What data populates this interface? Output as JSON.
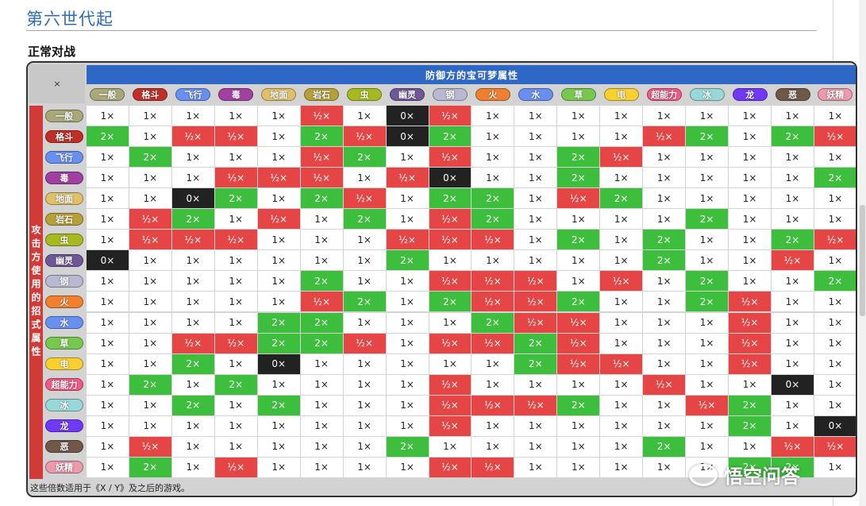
{
  "section_title": "第六世代起",
  "sub_title": "正常对战",
  "table": {
    "corner": "×",
    "defender_header": "防御方的宝可梦属性",
    "attacker_header": "攻击方使用的招式属性",
    "footer_note": "这些倍数适用于《X / Y》及之后的游戏。",
    "types": [
      {
        "name": "一般",
        "color": "#a8a878"
      },
      {
        "name": "格斗",
        "color": "#c03028"
      },
      {
        "name": "飞行",
        "color": "#6890f0"
      },
      {
        "name": "毒",
        "color": "#a040a0"
      },
      {
        "name": "地面",
        "color": "#e0c068"
      },
      {
        "name": "岩石",
        "color": "#b8a038"
      },
      {
        "name": "虫",
        "color": "#a8b820"
      },
      {
        "name": "幽灵",
        "color": "#705898"
      },
      {
        "name": "钢",
        "color": "#b8b8d0"
      },
      {
        "name": "火",
        "color": "#f08030"
      },
      {
        "name": "水",
        "color": "#6890f0"
      },
      {
        "name": "草",
        "color": "#78c850"
      },
      {
        "name": "电",
        "color": "#f8d030"
      },
      {
        "name": "超能力",
        "color": "#f85888"
      },
      {
        "name": "冰",
        "color": "#98d8d8"
      },
      {
        "name": "龙",
        "color": "#7038f8"
      },
      {
        "name": "恶",
        "color": "#705848"
      },
      {
        "name": "妖精",
        "color": "#ee99ac"
      }
    ],
    "multiplier_labels": {
      "1": "1×",
      "2": "2×",
      "h": "½×",
      "0": "0×"
    },
    "matrix": [
      [
        "1",
        "1",
        "1",
        "1",
        "1",
        "h",
        "1",
        "0",
        "h",
        "1",
        "1",
        "1",
        "1",
        "1",
        "1",
        "1",
        "1",
        "1"
      ],
      [
        "2",
        "1",
        "h",
        "h",
        "1",
        "2",
        "h",
        "0",
        "2",
        "1",
        "1",
        "1",
        "1",
        "h",
        "2",
        "1",
        "2",
        "h"
      ],
      [
        "1",
        "2",
        "1",
        "1",
        "1",
        "h",
        "2",
        "1",
        "h",
        "1",
        "1",
        "2",
        "h",
        "1",
        "1",
        "1",
        "1",
        "1"
      ],
      [
        "1",
        "1",
        "1",
        "h",
        "h",
        "h",
        "1",
        "h",
        "0",
        "1",
        "1",
        "2",
        "1",
        "1",
        "1",
        "1",
        "1",
        "2"
      ],
      [
        "1",
        "1",
        "0",
        "2",
        "1",
        "2",
        "h",
        "1",
        "2",
        "2",
        "1",
        "h",
        "2",
        "1",
        "1",
        "1",
        "1",
        "1"
      ],
      [
        "1",
        "h",
        "2",
        "1",
        "h",
        "1",
        "2",
        "1",
        "h",
        "2",
        "1",
        "1",
        "1",
        "1",
        "2",
        "1",
        "1",
        "1"
      ],
      [
        "1",
        "h",
        "h",
        "h",
        "1",
        "1",
        "1",
        "h",
        "h",
        "h",
        "1",
        "2",
        "1",
        "2",
        "1",
        "1",
        "2",
        "h"
      ],
      [
        "0",
        "1",
        "1",
        "1",
        "1",
        "1",
        "1",
        "2",
        "1",
        "1",
        "1",
        "1",
        "1",
        "2",
        "1",
        "1",
        "h",
        "1"
      ],
      [
        "1",
        "1",
        "1",
        "1",
        "1",
        "2",
        "1",
        "1",
        "h",
        "h",
        "h",
        "1",
        "h",
        "1",
        "2",
        "1",
        "1",
        "2"
      ],
      [
        "1",
        "1",
        "1",
        "1",
        "1",
        "h",
        "2",
        "1",
        "2",
        "h",
        "h",
        "2",
        "1",
        "1",
        "2",
        "h",
        "1",
        "1"
      ],
      [
        "1",
        "1",
        "1",
        "1",
        "2",
        "2",
        "1",
        "1",
        "1",
        "2",
        "h",
        "h",
        "1",
        "1",
        "1",
        "h",
        "1",
        "1"
      ],
      [
        "1",
        "1",
        "h",
        "h",
        "2",
        "2",
        "h",
        "1",
        "h",
        "h",
        "2",
        "h",
        "1",
        "1",
        "1",
        "h",
        "1",
        "1"
      ],
      [
        "1",
        "1",
        "2",
        "1",
        "0",
        "1",
        "1",
        "1",
        "1",
        "1",
        "2",
        "h",
        "h",
        "1",
        "1",
        "h",
        "1",
        "1"
      ],
      [
        "1",
        "2",
        "1",
        "2",
        "1",
        "1",
        "1",
        "1",
        "h",
        "1",
        "1",
        "1",
        "1",
        "h",
        "1",
        "1",
        "0",
        "1"
      ],
      [
        "1",
        "1",
        "2",
        "1",
        "2",
        "1",
        "1",
        "1",
        "h",
        "h",
        "h",
        "2",
        "1",
        "1",
        "h",
        "2",
        "1",
        "1"
      ],
      [
        "1",
        "1",
        "1",
        "1",
        "1",
        "1",
        "1",
        "1",
        "h",
        "1",
        "1",
        "1",
        "1",
        "1",
        "1",
        "2",
        "1",
        "0"
      ],
      [
        "1",
        "h",
        "1",
        "1",
        "1",
        "1",
        "1",
        "2",
        "1",
        "1",
        "1",
        "1",
        "1",
        "2",
        "1",
        "1",
        "h",
        "h"
      ],
      [
        "1",
        "2",
        "1",
        "h",
        "1",
        "1",
        "1",
        "1",
        "h",
        "h",
        "1",
        "1",
        "1",
        "1",
        "1",
        "2",
        "2",
        "1"
      ]
    ]
  },
  "watermark": "悟空问答"
}
